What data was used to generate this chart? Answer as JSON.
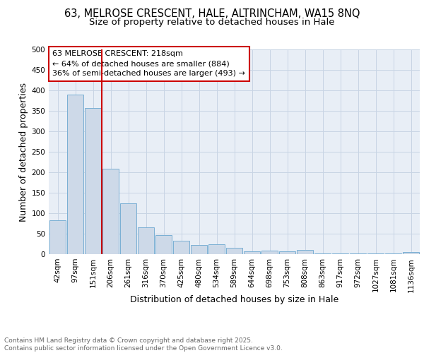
{
  "title_line1": "63, MELROSE CRESCENT, HALE, ALTRINCHAM, WA15 8NQ",
  "title_line2": "Size of property relative to detached houses in Hale",
  "xlabel": "Distribution of detached houses by size in Hale",
  "ylabel": "Number of detached properties",
  "categories": [
    "42sqm",
    "97sqm",
    "151sqm",
    "206sqm",
    "261sqm",
    "316sqm",
    "370sqm",
    "425sqm",
    "480sqm",
    "534sqm",
    "589sqm",
    "644sqm",
    "698sqm",
    "753sqm",
    "808sqm",
    "863sqm",
    "917sqm",
    "972sqm",
    "1027sqm",
    "1081sqm",
    "1136sqm"
  ],
  "bar_heights": [
    82,
    390,
    357,
    208,
    125,
    65,
    46,
    33,
    22,
    24,
    15,
    7,
    9,
    7,
    10,
    2,
    2,
    2,
    2,
    1,
    5
  ],
  "bar_color": "#cdd9e8",
  "bar_edge_color": "#7aafd4",
  "vline_color": "#cc0000",
  "vline_bar_index": 3,
  "annotation_text": "63 MELROSE CRESCENT: 218sqm\n← 64% of detached houses are smaller (884)\n36% of semi-detached houses are larger (493) →",
  "annotation_box_color": "#ffffff",
  "annotation_box_edge": "#cc0000",
  "footer_text": "Contains HM Land Registry data © Crown copyright and database right 2025.\nContains public sector information licensed under the Open Government Licence v3.0.",
  "ylim": [
    0,
    500
  ],
  "yticks": [
    0,
    50,
    100,
    150,
    200,
    250,
    300,
    350,
    400,
    450,
    500
  ],
  "grid_color": "#c8d4e4",
  "background_color": "#e8eef6",
  "title_fontsize": 10.5,
  "subtitle_fontsize": 9.5,
  "axis_label_fontsize": 9,
  "tick_fontsize": 7.5,
  "annotation_fontsize": 8,
  "footer_fontsize": 6.5
}
